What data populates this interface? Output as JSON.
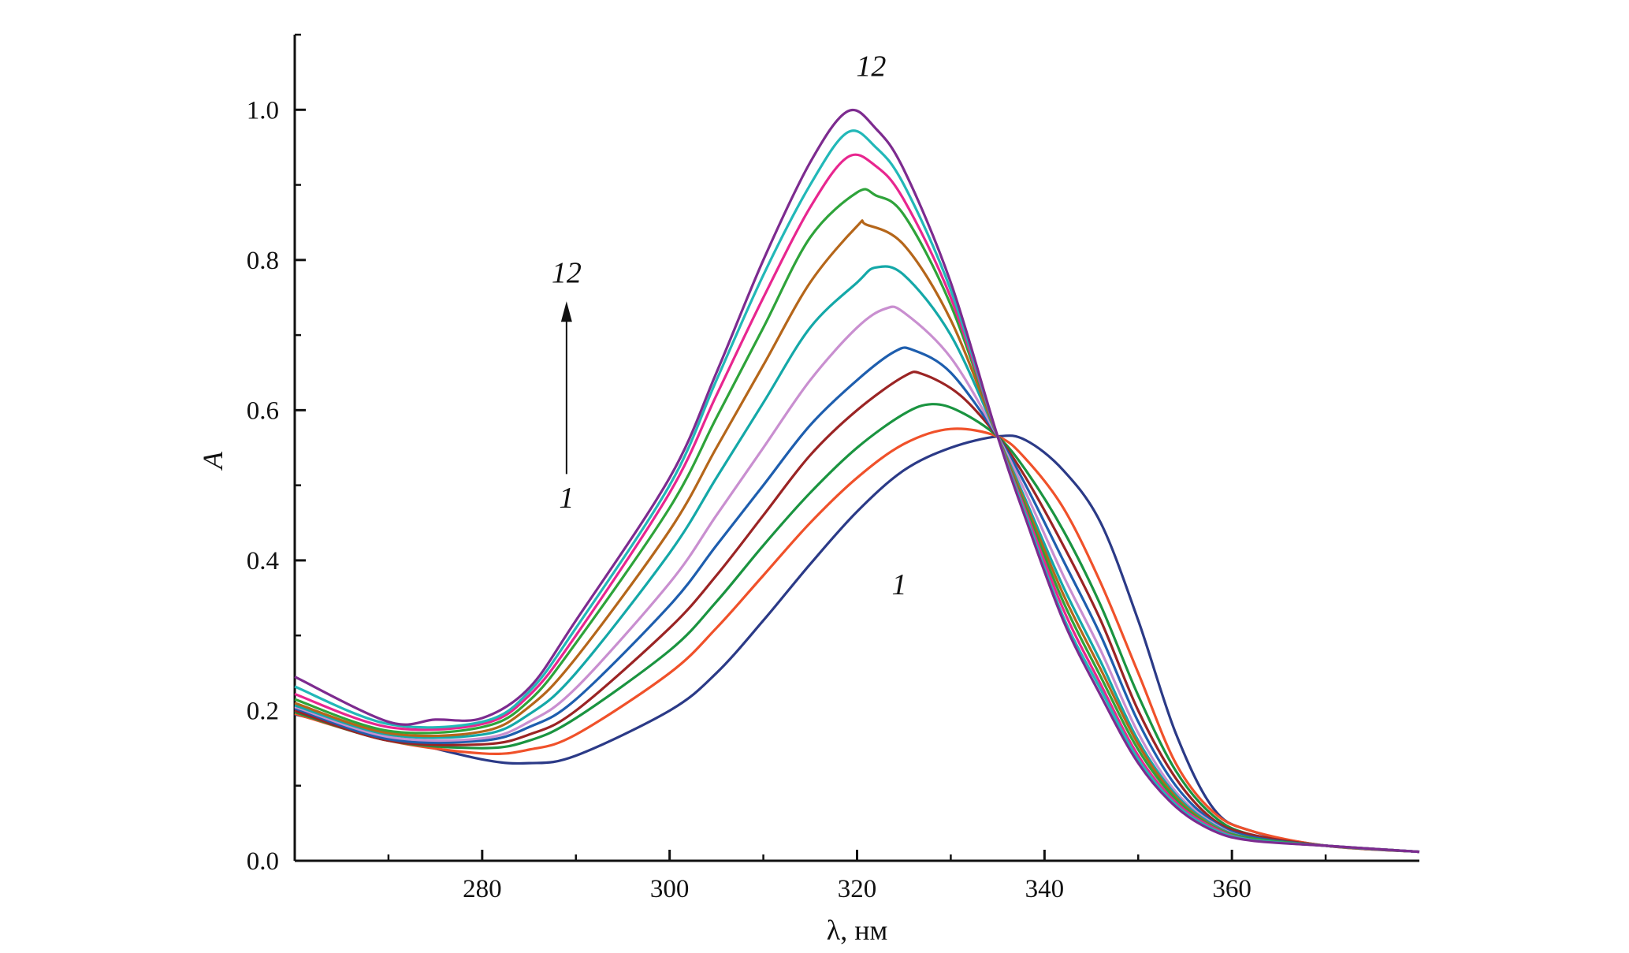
{
  "chart_data": {
    "type": "line",
    "title": "",
    "xlabel": "λ, нм",
    "ylabel": "A",
    "xlim": [
      260,
      380
    ],
    "ylim": [
      0,
      1.1
    ],
    "grid": false,
    "legend": "none",
    "x_ticks": [
      {
        "value": 280,
        "label": "280"
      },
      {
        "value": 300,
        "label": "300"
      },
      {
        "value": 320,
        "label": "320"
      },
      {
        "value": 340,
        "label": "340"
      },
      {
        "value": 360,
        "label": "360"
      }
    ],
    "y_ticks": [
      {
        "value": 0.0,
        "label": "0.0"
      },
      {
        "value": 0.2,
        "label": "0.2"
      },
      {
        "value": 0.4,
        "label": "0.4"
      },
      {
        "value": 0.6,
        "label": "0.6"
      },
      {
        "value": 0.8,
        "label": "0.8"
      },
      {
        "value": 1.0,
        "label": "1.0"
      }
    ],
    "series": [
      {
        "color": "#2b3a87",
        "points": [
          [
            260,
            0.195
          ],
          [
            270,
            0.165
          ],
          [
            280,
            0.135
          ],
          [
            285,
            0.13
          ],
          [
            290,
            0.14
          ],
          [
            300,
            0.2
          ],
          [
            305,
            0.25
          ],
          [
            310,
            0.32
          ],
          [
            315,
            0.395
          ],
          [
            320,
            0.465
          ],
          [
            325,
            0.52
          ],
          [
            330,
            0.55
          ],
          [
            335,
            0.565
          ],
          [
            338,
            0.56
          ],
          [
            342,
            0.52
          ],
          [
            346,
            0.45
          ],
          [
            350,
            0.32
          ],
          [
            354,
            0.17
          ],
          [
            358,
            0.07
          ],
          [
            362,
            0.04
          ],
          [
            370,
            0.02
          ],
          [
            380,
            0.012
          ]
        ]
      },
      {
        "color": "#f0512a",
        "points": [
          [
            260,
            0.196
          ],
          [
            270,
            0.16
          ],
          [
            280,
            0.143
          ],
          [
            285,
            0.148
          ],
          [
            290,
            0.168
          ],
          [
            300,
            0.25
          ],
          [
            305,
            0.31
          ],
          [
            310,
            0.38
          ],
          [
            315,
            0.45
          ],
          [
            320,
            0.51
          ],
          [
            325,
            0.555
          ],
          [
            330,
            0.575
          ],
          [
            335,
            0.565
          ],
          [
            338,
            0.535
          ],
          [
            342,
            0.47
          ],
          [
            346,
            0.37
          ],
          [
            350,
            0.25
          ],
          [
            354,
            0.13
          ],
          [
            358,
            0.065
          ],
          [
            362,
            0.04
          ],
          [
            370,
            0.02
          ],
          [
            380,
            0.012
          ]
        ]
      },
      {
        "color": "#1a9440",
        "points": [
          [
            260,
            0.198
          ],
          [
            270,
            0.16
          ],
          [
            280,
            0.15
          ],
          [
            285,
            0.16
          ],
          [
            290,
            0.19
          ],
          [
            300,
            0.28
          ],
          [
            305,
            0.345
          ],
          [
            310,
            0.42
          ],
          [
            315,
            0.49
          ],
          [
            320,
            0.55
          ],
          [
            325,
            0.595
          ],
          [
            328,
            0.608
          ],
          [
            331,
            0.598
          ],
          [
            335,
            0.565
          ],
          [
            338,
            0.52
          ],
          [
            342,
            0.44
          ],
          [
            346,
            0.34
          ],
          [
            350,
            0.22
          ],
          [
            354,
            0.12
          ],
          [
            358,
            0.06
          ],
          [
            362,
            0.035
          ],
          [
            370,
            0.02
          ],
          [
            380,
            0.012
          ]
        ]
      },
      {
        "color": "#9b2424",
        "points": [
          [
            260,
            0.2
          ],
          [
            270,
            0.16
          ],
          [
            280,
            0.155
          ],
          [
            285,
            0.168
          ],
          [
            290,
            0.2
          ],
          [
            300,
            0.31
          ],
          [
            305,
            0.38
          ],
          [
            310,
            0.46
          ],
          [
            315,
            0.54
          ],
          [
            320,
            0.6
          ],
          [
            325,
            0.645
          ],
          [
            327,
            0.648
          ],
          [
            331,
            0.62
          ],
          [
            335,
            0.565
          ],
          [
            338,
            0.51
          ],
          [
            342,
            0.42
          ],
          [
            346,
            0.32
          ],
          [
            350,
            0.2
          ],
          [
            354,
            0.11
          ],
          [
            358,
            0.055
          ],
          [
            362,
            0.035
          ],
          [
            370,
            0.02
          ],
          [
            380,
            0.012
          ]
        ]
      },
      {
        "color": "#1e5eae",
        "points": [
          [
            260,
            0.203
          ],
          [
            270,
            0.162
          ],
          [
            280,
            0.16
          ],
          [
            285,
            0.178
          ],
          [
            290,
            0.215
          ],
          [
            300,
            0.34
          ],
          [
            305,
            0.42
          ],
          [
            310,
            0.5
          ],
          [
            315,
            0.58
          ],
          [
            320,
            0.64
          ],
          [
            324,
            0.678
          ],
          [
            326,
            0.68
          ],
          [
            330,
            0.65
          ],
          [
            335,
            0.565
          ],
          [
            338,
            0.5
          ],
          [
            342,
            0.4
          ],
          [
            346,
            0.3
          ],
          [
            350,
            0.185
          ],
          [
            354,
            0.1
          ],
          [
            358,
            0.052
          ],
          [
            362,
            0.032
          ],
          [
            370,
            0.02
          ],
          [
            380,
            0.012
          ]
        ]
      },
      {
        "color": "#c98fd0",
        "points": [
          [
            260,
            0.205
          ],
          [
            270,
            0.165
          ],
          [
            280,
            0.163
          ],
          [
            285,
            0.185
          ],
          [
            290,
            0.23
          ],
          [
            300,
            0.37
          ],
          [
            305,
            0.46
          ],
          [
            310,
            0.55
          ],
          [
            315,
            0.64
          ],
          [
            320,
            0.71
          ],
          [
            323,
            0.735
          ],
          [
            325,
            0.73
          ],
          [
            330,
            0.67
          ],
          [
            335,
            0.565
          ],
          [
            338,
            0.49
          ],
          [
            342,
            0.38
          ],
          [
            346,
            0.28
          ],
          [
            350,
            0.17
          ],
          [
            354,
            0.092
          ],
          [
            358,
            0.05
          ],
          [
            362,
            0.03
          ],
          [
            370,
            0.02
          ],
          [
            380,
            0.012
          ]
        ]
      },
      {
        "color": "#14a8a8",
        "points": [
          [
            260,
            0.207
          ],
          [
            270,
            0.168
          ],
          [
            280,
            0.168
          ],
          [
            285,
            0.195
          ],
          [
            290,
            0.25
          ],
          [
            300,
            0.41
          ],
          [
            305,
            0.51
          ],
          [
            310,
            0.61
          ],
          [
            315,
            0.71
          ],
          [
            320,
            0.77
          ],
          [
            322,
            0.79
          ],
          [
            325,
            0.78
          ],
          [
            330,
            0.7
          ],
          [
            335,
            0.565
          ],
          [
            338,
            0.48
          ],
          [
            342,
            0.365
          ],
          [
            346,
            0.265
          ],
          [
            350,
            0.16
          ],
          [
            354,
            0.088
          ],
          [
            358,
            0.048
          ],
          [
            362,
            0.03
          ],
          [
            370,
            0.02
          ],
          [
            380,
            0.012
          ]
        ]
      },
      {
        "color": "#b5661a",
        "points": [
          [
            260,
            0.21
          ],
          [
            270,
            0.17
          ],
          [
            280,
            0.172
          ],
          [
            285,
            0.205
          ],
          [
            290,
            0.27
          ],
          [
            300,
            0.44
          ],
          [
            305,
            0.55
          ],
          [
            310,
            0.66
          ],
          [
            315,
            0.77
          ],
          [
            320,
            0.845
          ],
          [
            321,
            0.847
          ],
          [
            325,
            0.82
          ],
          [
            330,
            0.72
          ],
          [
            335,
            0.565
          ],
          [
            338,
            0.475
          ],
          [
            342,
            0.355
          ],
          [
            346,
            0.255
          ],
          [
            350,
            0.155
          ],
          [
            354,
            0.085
          ],
          [
            358,
            0.046
          ],
          [
            362,
            0.03
          ],
          [
            370,
            0.02
          ],
          [
            380,
            0.012
          ]
        ]
      },
      {
        "color": "#2ea33a",
        "points": [
          [
            260,
            0.215
          ],
          [
            270,
            0.173
          ],
          [
            280,
            0.178
          ],
          [
            285,
            0.213
          ],
          [
            290,
            0.29
          ],
          [
            300,
            0.47
          ],
          [
            305,
            0.59
          ],
          [
            310,
            0.71
          ],
          [
            315,
            0.83
          ],
          [
            320,
            0.89
          ],
          [
            322,
            0.886
          ],
          [
            325,
            0.86
          ],
          [
            330,
            0.74
          ],
          [
            335,
            0.565
          ],
          [
            338,
            0.47
          ],
          [
            342,
            0.345
          ],
          [
            346,
            0.245
          ],
          [
            350,
            0.148
          ],
          [
            354,
            0.082
          ],
          [
            358,
            0.045
          ],
          [
            362,
            0.03
          ],
          [
            370,
            0.02
          ],
          [
            380,
            0.012
          ]
        ]
      },
      {
        "color": "#e8268f",
        "points": [
          [
            260,
            0.222
          ],
          [
            270,
            0.178
          ],
          [
            280,
            0.182
          ],
          [
            285,
            0.22
          ],
          [
            290,
            0.3
          ],
          [
            300,
            0.49
          ],
          [
            305,
            0.62
          ],
          [
            310,
            0.75
          ],
          [
            315,
            0.87
          ],
          [
            319,
            0.937
          ],
          [
            322,
            0.925
          ],
          [
            325,
            0.88
          ],
          [
            330,
            0.75
          ],
          [
            335,
            0.565
          ],
          [
            338,
            0.465
          ],
          [
            342,
            0.335
          ],
          [
            346,
            0.235
          ],
          [
            350,
            0.14
          ],
          [
            354,
            0.078
          ],
          [
            358,
            0.044
          ],
          [
            362,
            0.028
          ],
          [
            370,
            0.02
          ],
          [
            380,
            0.012
          ]
        ]
      },
      {
        "color": "#22b8b8",
        "points": [
          [
            260,
            0.232
          ],
          [
            270,
            0.182
          ],
          [
            280,
            0.185
          ],
          [
            285,
            0.225
          ],
          [
            290,
            0.31
          ],
          [
            300,
            0.5
          ],
          [
            305,
            0.64
          ],
          [
            310,
            0.78
          ],
          [
            315,
            0.9
          ],
          [
            319,
            0.97
          ],
          [
            322,
            0.95
          ],
          [
            325,
            0.9
          ],
          [
            330,
            0.76
          ],
          [
            335,
            0.565
          ],
          [
            338,
            0.46
          ],
          [
            342,
            0.325
          ],
          [
            346,
            0.228
          ],
          [
            350,
            0.135
          ],
          [
            354,
            0.075
          ],
          [
            358,
            0.042
          ],
          [
            362,
            0.028
          ],
          [
            370,
            0.02
          ],
          [
            380,
            0.012
          ]
        ]
      },
      {
        "color": "#7d2b8f",
        "points": [
          [
            260,
            0.245
          ],
          [
            270,
            0.185
          ],
          [
            275,
            0.188
          ],
          [
            280,
            0.19
          ],
          [
            285,
            0.23
          ],
          [
            290,
            0.32
          ],
          [
            300,
            0.51
          ],
          [
            305,
            0.65
          ],
          [
            310,
            0.8
          ],
          [
            315,
            0.93
          ],
          [
            319,
            0.998
          ],
          [
            322,
            0.975
          ],
          [
            325,
            0.92
          ],
          [
            330,
            0.77
          ],
          [
            335,
            0.565
          ],
          [
            338,
            0.455
          ],
          [
            342,
            0.32
          ],
          [
            346,
            0.22
          ],
          [
            350,
            0.13
          ],
          [
            354,
            0.072
          ],
          [
            358,
            0.04
          ],
          [
            362,
            0.027
          ],
          [
            370,
            0.02
          ],
          [
            380,
            0.012
          ]
        ]
      }
    ],
    "annotations": [
      {
        "id": "label-12-top",
        "text": "12",
        "x": 321.5,
        "y": 1.045
      },
      {
        "id": "label-1-bottom",
        "text": "1",
        "x": 324.5,
        "y": 0.355
      },
      {
        "id": "label-12-arrow",
        "text": "12",
        "x": 289,
        "y": 0.77
      },
      {
        "id": "label-1-arrow",
        "text": "1",
        "x": 289,
        "y": 0.47
      }
    ],
    "arrow": {
      "x": 289,
      "from_y": 0.515,
      "to_y": 0.745
    }
  }
}
